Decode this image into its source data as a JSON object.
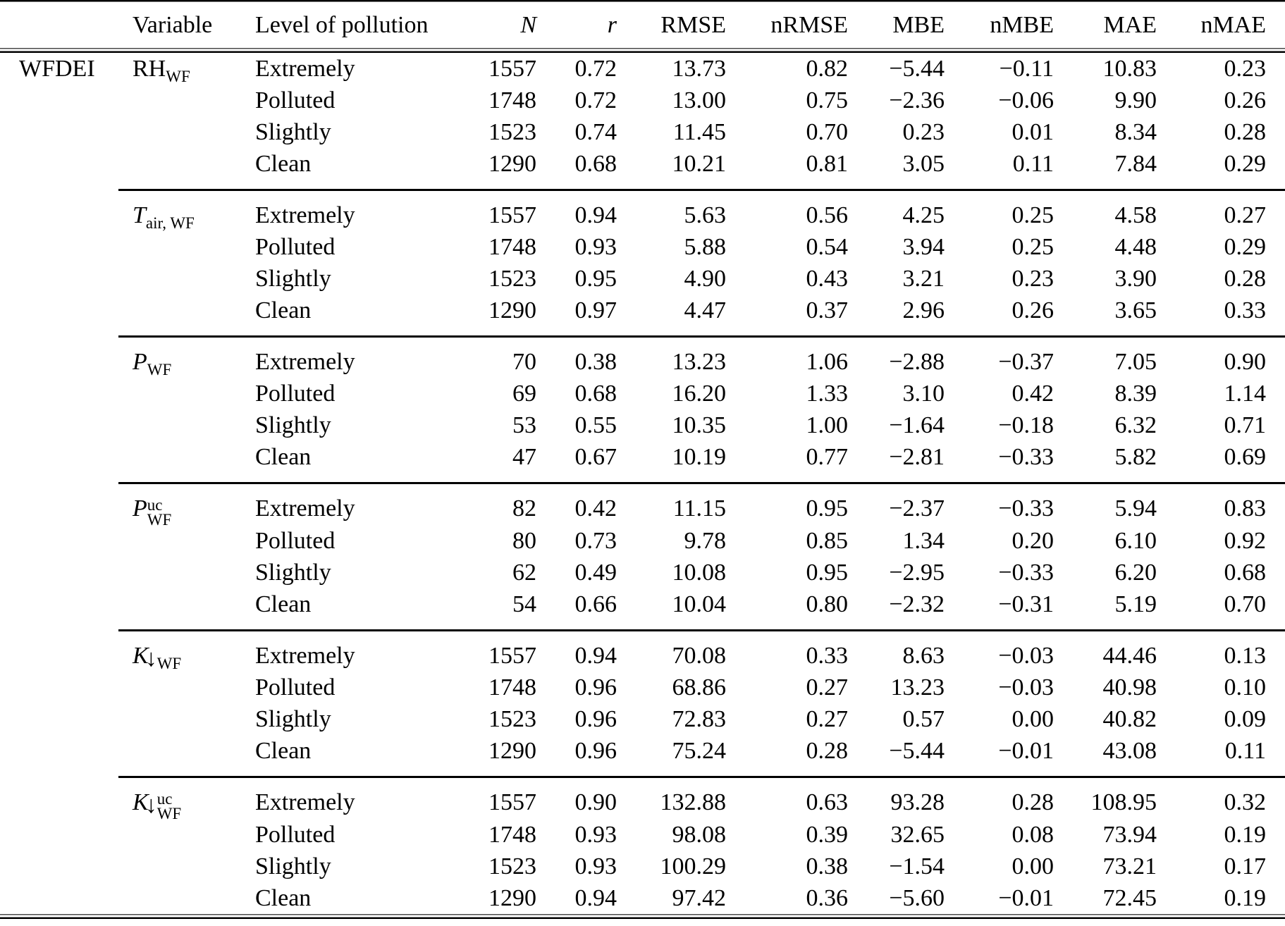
{
  "table": {
    "row_group_label": "WFDEI",
    "columns": [
      "Variable",
      "Level of pollution",
      "N",
      "r",
      "RMSE",
      "nRMSE",
      "MBE",
      "nMBE",
      "MAE",
      "nMAE"
    ],
    "groups": [
      {
        "variable": {
          "base": "RH",
          "italic": false,
          "arrow_glyph": "",
          "sup": "",
          "sub": "WF"
        },
        "rows": [
          [
            "Extremely",
            "1557",
            "0.72",
            "13.73",
            "0.82",
            "−5.44",
            "−0.11",
            "10.83",
            "0.23"
          ],
          [
            "Polluted",
            "1748",
            "0.72",
            "13.00",
            "0.75",
            "−2.36",
            "−0.06",
            "9.90",
            "0.26"
          ],
          [
            "Slightly",
            "1523",
            "0.74",
            "11.45",
            "0.70",
            "0.23",
            "0.01",
            "8.34",
            "0.28"
          ],
          [
            "Clean",
            "1290",
            "0.68",
            "10.21",
            "0.81",
            "3.05",
            "0.11",
            "7.84",
            "0.29"
          ]
        ]
      },
      {
        "variable": {
          "base": "T",
          "italic": true,
          "arrow_glyph": "",
          "sup": "",
          "sub": "air, WF"
        },
        "rows": [
          [
            "Extremely",
            "1557",
            "0.94",
            "5.63",
            "0.56",
            "4.25",
            "0.25",
            "4.58",
            "0.27"
          ],
          [
            "Polluted",
            "1748",
            "0.93",
            "5.88",
            "0.54",
            "3.94",
            "0.25",
            "4.48",
            "0.29"
          ],
          [
            "Slightly",
            "1523",
            "0.95",
            "4.90",
            "0.43",
            "3.21",
            "0.23",
            "3.90",
            "0.28"
          ],
          [
            "Clean",
            "1290",
            "0.97",
            "4.47",
            "0.37",
            "2.96",
            "0.26",
            "3.65",
            "0.33"
          ]
        ]
      },
      {
        "variable": {
          "base": "P",
          "italic": true,
          "arrow_glyph": "",
          "sup": "",
          "sub": "WF"
        },
        "rows": [
          [
            "Extremely",
            "70",
            "0.38",
            "13.23",
            "1.06",
            "−2.88",
            "−0.37",
            "7.05",
            "0.90"
          ],
          [
            "Polluted",
            "69",
            "0.68",
            "16.20",
            "1.33",
            "3.10",
            "0.42",
            "8.39",
            "1.14"
          ],
          [
            "Slightly",
            "53",
            "0.55",
            "10.35",
            "1.00",
            "−1.64",
            "−0.18",
            "6.32",
            "0.71"
          ],
          [
            "Clean",
            "47",
            "0.67",
            "10.19",
            "0.77",
            "−2.81",
            "−0.33",
            "5.82",
            "0.69"
          ]
        ]
      },
      {
        "variable": {
          "base": "P",
          "italic": true,
          "arrow_glyph": "",
          "sup": "uc",
          "sub": "WF"
        },
        "rows": [
          [
            "Extremely",
            "82",
            "0.42",
            "11.15",
            "0.95",
            "−2.37",
            "−0.33",
            "5.94",
            "0.83"
          ],
          [
            "Polluted",
            "80",
            "0.73",
            "9.78",
            "0.85",
            "1.34",
            "0.20",
            "6.10",
            "0.92"
          ],
          [
            "Slightly",
            "62",
            "0.49",
            "10.08",
            "0.95",
            "−2.95",
            "−0.33",
            "6.20",
            "0.68"
          ],
          [
            "Clean",
            "54",
            "0.66",
            "10.04",
            "0.80",
            "−2.32",
            "−0.31",
            "5.19",
            "0.70"
          ]
        ]
      },
      {
        "variable": {
          "base": "K",
          "italic": true,
          "arrow_glyph": "↓",
          "sup": "",
          "sub": "WF"
        },
        "rows": [
          [
            "Extremely",
            "1557",
            "0.94",
            "70.08",
            "0.33",
            "8.63",
            "−0.03",
            "44.46",
            "0.13"
          ],
          [
            "Polluted",
            "1748",
            "0.96",
            "68.86",
            "0.27",
            "13.23",
            "−0.03",
            "40.98",
            "0.10"
          ],
          [
            "Slightly",
            "1523",
            "0.96",
            "72.83",
            "0.27",
            "0.57",
            "0.00",
            "40.82",
            "0.09"
          ],
          [
            "Clean",
            "1290",
            "0.96",
            "75.24",
            "0.28",
            "−5.44",
            "−0.01",
            "43.08",
            "0.11"
          ]
        ]
      },
      {
        "variable": {
          "base": "K",
          "italic": true,
          "arrow_glyph": "↓",
          "sup": "uc",
          "sub": "WF"
        },
        "rows": [
          [
            "Extremely",
            "1557",
            "0.90",
            "132.88",
            "0.63",
            "93.28",
            "0.28",
            "108.95",
            "0.32"
          ],
          [
            "Polluted",
            "1748",
            "0.93",
            "98.08",
            "0.39",
            "32.65",
            "0.08",
            "73.94",
            "0.19"
          ],
          [
            "Slightly",
            "1523",
            "0.93",
            "100.29",
            "0.38",
            "−1.54",
            "0.00",
            "73.21",
            "0.17"
          ],
          [
            "Clean",
            "1290",
            "0.94",
            "97.42",
            "0.36",
            "−5.60",
            "−0.01",
            "72.45",
            "0.19"
          ]
        ]
      }
    ]
  }
}
